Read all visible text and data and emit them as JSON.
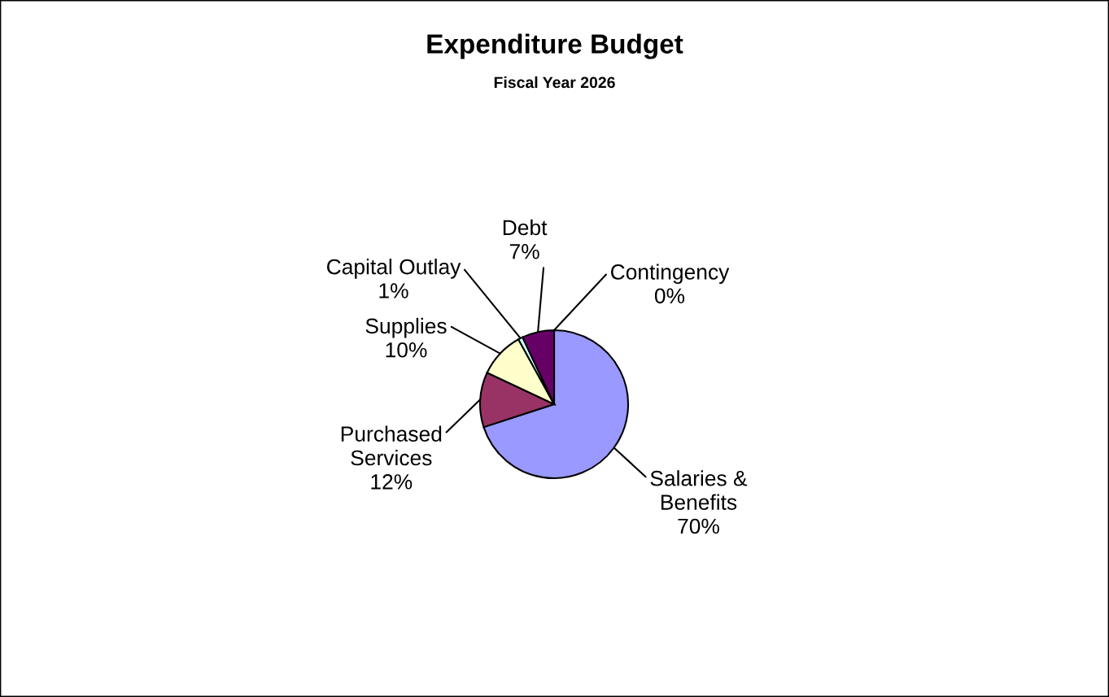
{
  "chart_data": {
    "type": "pie",
    "title": "Expenditure Budget",
    "subtitle": "Fiscal Year 2026",
    "categories": [
      "Salaries & Benefits",
      "Purchased Services",
      "Supplies",
      "Capital Outlay",
      "Debt",
      "Contingency"
    ],
    "values": [
      70,
      12,
      10,
      1,
      7,
      0
    ],
    "colors": [
      "#9999ff",
      "#993366",
      "#ffffcc",
      "#ccffff",
      "#660066",
      "#ff8080"
    ],
    "value_labels": [
      "70%",
      "12%",
      "10%",
      "1%",
      "7%",
      "0%"
    ],
    "legend": false
  }
}
